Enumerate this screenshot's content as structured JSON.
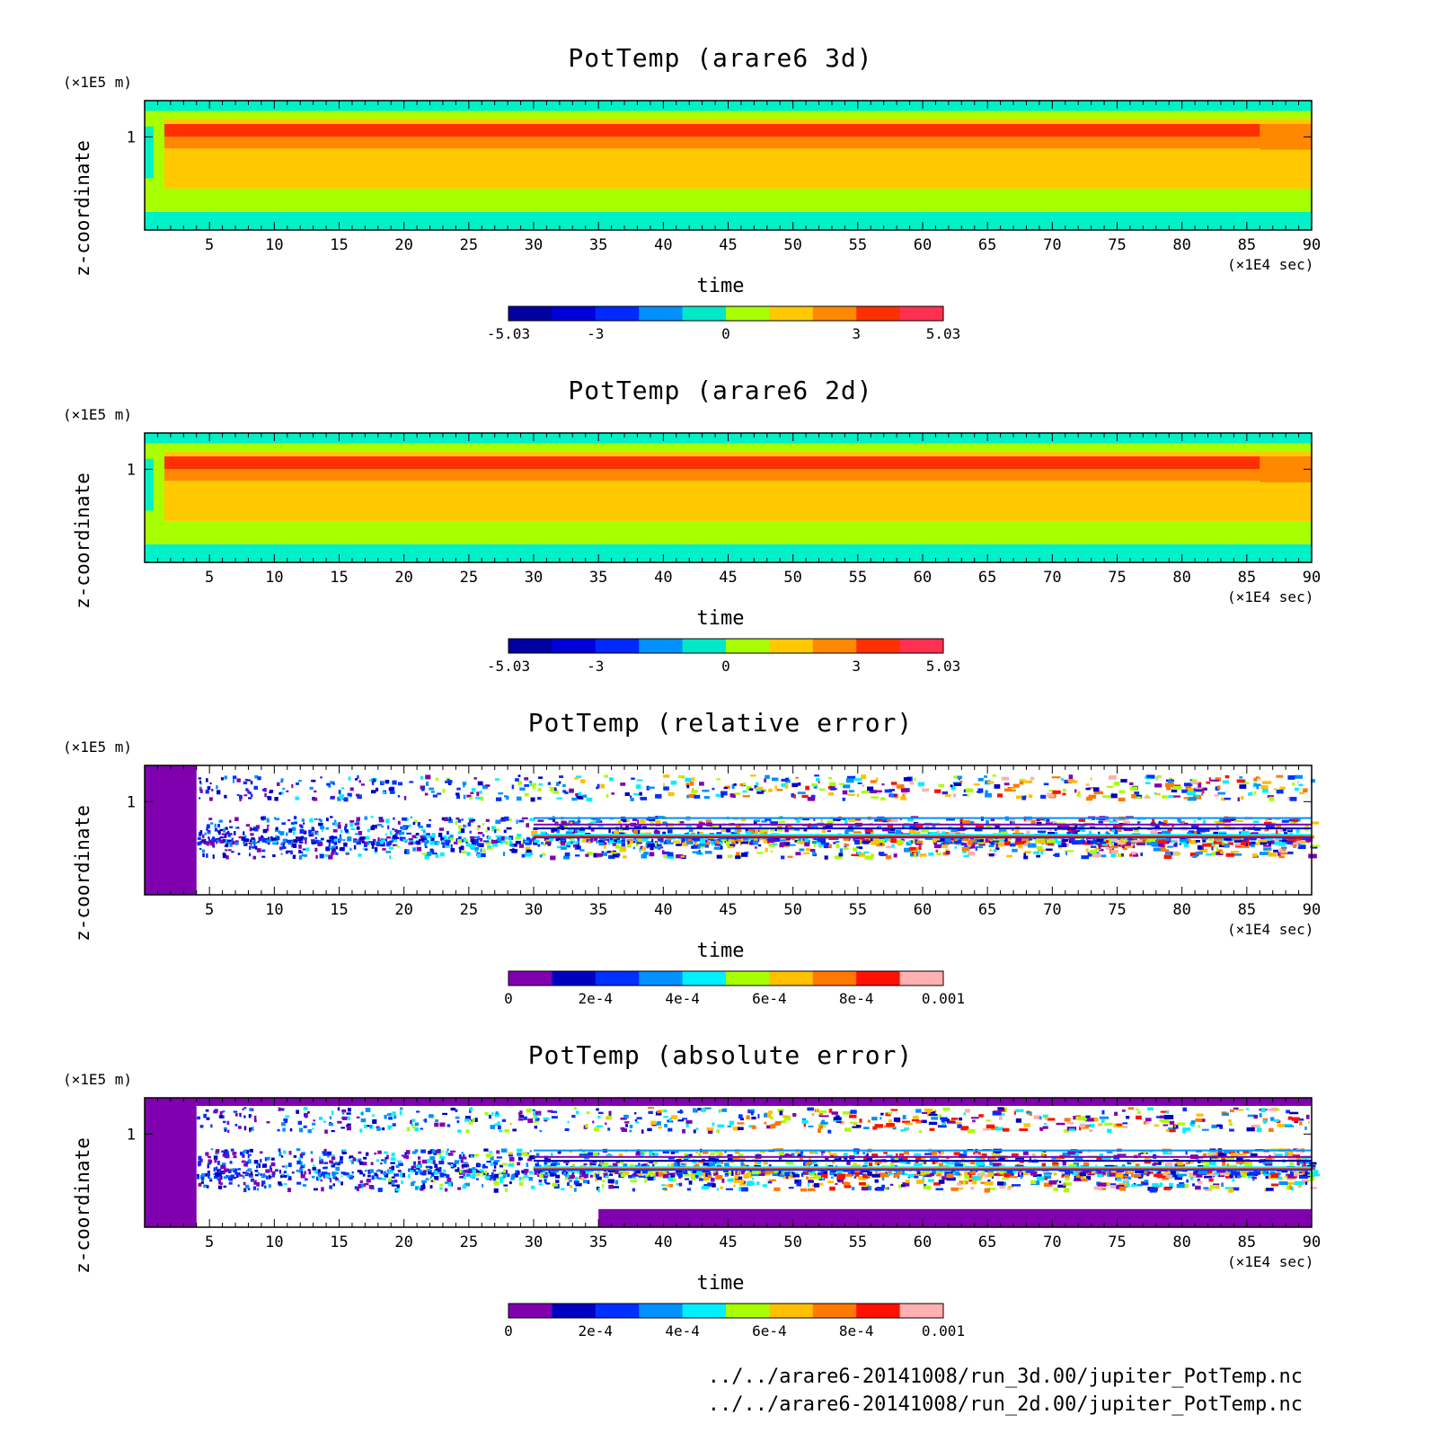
{
  "chart_data": [
    {
      "type": "heatmap",
      "title": "PotTemp (arare6 3d)",
      "xlabel": "time",
      "ylabel": "z-coordinate",
      "xunit": "(×1E4 sec)",
      "yunit": "(×1E5 m)",
      "xlim": [
        0,
        90
      ],
      "xticks": [
        5,
        10,
        15,
        20,
        25,
        30,
        35,
        40,
        45,
        50,
        55,
        60,
        65,
        70,
        75,
        80,
        85,
        90
      ],
      "yticks": [
        1
      ],
      "colorbar": {
        "labels": [
          "-5.03",
          "-3",
          "0",
          "3",
          "5.03"
        ],
        "colors": [
          "#0000a0",
          "#0000d8",
          "#0028ff",
          "#0090ff",
          "#00e8c8",
          "#a8ff00",
          "#ffc800",
          "#ff8800",
          "#ff3000",
          "#ff3050"
        ]
      },
      "bands": [
        {
          "color": "#00f0c8",
          "range": [
            0.0,
            0.14
          ]
        },
        {
          "color": "#a8ff00",
          "range": [
            0.14,
            0.32
          ]
        },
        {
          "color": "#ffc800",
          "range": [
            0.32,
            0.63
          ]
        },
        {
          "color": "#ff8800",
          "range": [
            0.63,
            0.72
          ]
        },
        {
          "color": "#ff3000",
          "range": [
            0.72,
            0.82
          ]
        },
        {
          "color": "#ffc800",
          "range": [
            0.82,
            0.86
          ]
        },
        {
          "color": "#a8ff00",
          "range": [
            0.86,
            0.92
          ]
        },
        {
          "color": "#00f0c8",
          "range": [
            0.92,
            1.0
          ]
        }
      ]
    },
    {
      "type": "heatmap",
      "title": "PotTemp (arare6 2d)",
      "xlabel": "time",
      "ylabel": "z-coordinate",
      "xunit": "(×1E4 sec)",
      "yunit": "(×1E5 m)",
      "xlim": [
        0,
        90
      ],
      "xticks": [
        5,
        10,
        15,
        20,
        25,
        30,
        35,
        40,
        45,
        50,
        55,
        60,
        65,
        70,
        75,
        80,
        85,
        90
      ],
      "yticks": [
        1
      ],
      "colorbar": {
        "labels": [
          "-5.03",
          "-3",
          "0",
          "3",
          "5.03"
        ],
        "colors": [
          "#0000a0",
          "#0000d8",
          "#0028ff",
          "#0090ff",
          "#00e8c8",
          "#a8ff00",
          "#ffc800",
          "#ff8800",
          "#ff3000",
          "#ff3050"
        ]
      },
      "bands": [
        {
          "color": "#00f0c8",
          "range": [
            0.0,
            0.14
          ]
        },
        {
          "color": "#a8ff00",
          "range": [
            0.14,
            0.32
          ]
        },
        {
          "color": "#ffc800",
          "range": [
            0.32,
            0.63
          ]
        },
        {
          "color": "#ff8800",
          "range": [
            0.63,
            0.72
          ]
        },
        {
          "color": "#ff3000",
          "range": [
            0.72,
            0.82
          ]
        },
        {
          "color": "#ffc800",
          "range": [
            0.82,
            0.86
          ]
        },
        {
          "color": "#a8ff00",
          "range": [
            0.86,
            0.92
          ]
        },
        {
          "color": "#00f0c8",
          "range": [
            0.92,
            1.0
          ]
        }
      ]
    },
    {
      "type": "heatmap",
      "title": "PotTemp (relative error)",
      "xlabel": "time",
      "ylabel": "z-coordinate",
      "xunit": "(×1E4 sec)",
      "yunit": "(×1E5 m)",
      "xlim": [
        0,
        90
      ],
      "xticks": [
        5,
        10,
        15,
        20,
        25,
        30,
        35,
        40,
        45,
        50,
        55,
        60,
        65,
        70,
        75,
        80,
        85,
        90
      ],
      "yticks": [
        1
      ],
      "colorbar": {
        "labels": [
          "0",
          "2e-4",
          "4e-4",
          "6e-4",
          "8e-4",
          "0.001"
        ],
        "colors": [
          "#8000b0",
          "#0000c0",
          "#0030ff",
          "#0090ff",
          "#00f0ff",
          "#a8ff00",
          "#ffc000",
          "#ff7800",
          "#ff1000",
          "#ffb0b0"
        ]
      }
    },
    {
      "type": "heatmap",
      "title": "PotTemp (absolute error)",
      "xlabel": "time",
      "ylabel": "z-coordinate",
      "xunit": "(×1E4 sec)",
      "yunit": "(×1E5 m)",
      "xlim": [
        0,
        90
      ],
      "xticks": [
        5,
        10,
        15,
        20,
        25,
        30,
        35,
        40,
        45,
        50,
        55,
        60,
        65,
        70,
        75,
        80,
        85,
        90
      ],
      "yticks": [
        1
      ],
      "colorbar": {
        "labels": [
          "0",
          "2e-4",
          "4e-4",
          "6e-4",
          "8e-4",
          "0.001"
        ],
        "colors": [
          "#8000b0",
          "#0000c0",
          "#0030ff",
          "#0090ff",
          "#00f0ff",
          "#a8ff00",
          "#ffc000",
          "#ff7800",
          "#ff1000",
          "#ffb0b0"
        ]
      }
    }
  ],
  "footer": {
    "line1": "../../arare6-20141008/run_3d.00/jupiter_PotTemp.nc",
    "line2": "../../arare6-20141008/run_2d.00/jupiter_PotTemp.nc"
  }
}
